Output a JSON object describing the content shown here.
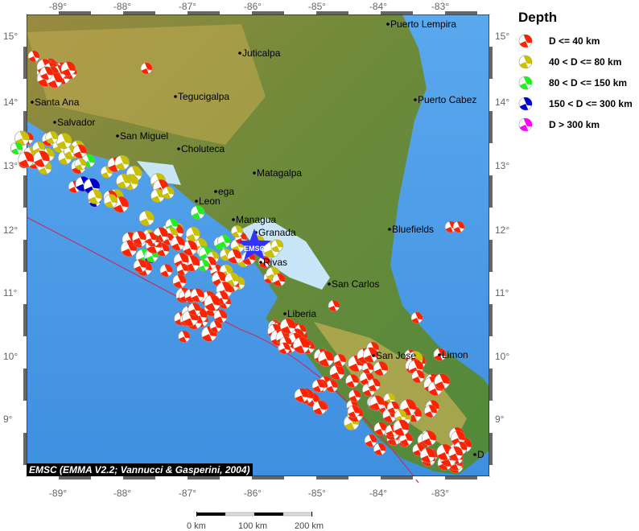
{
  "axes": {
    "lon_ticks": [
      "-89°",
      "-88°",
      "-87°",
      "-86°",
      "-85°",
      "-84°",
      "-83°"
    ],
    "lat_ticks": [
      "15°",
      "14°",
      "13°",
      "12°",
      "11°",
      "10°",
      "9°"
    ]
  },
  "cities": [
    "Puerto Lempira",
    "Juticalpa",
    "Santa Ana",
    "Tegucigalpa",
    "Puerto Cabez",
    "Salvador",
    "San Miguel",
    "Choluteca",
    "Matagalpa",
    "ega",
    "Leon",
    "Managua",
    "Granada",
    "Bluefields",
    "Rivas",
    "San Carlos",
    "Liberia",
    "San Jose",
    "Limon",
    "D"
  ],
  "marker": {
    "label": "EMSC",
    "color": "#3333ff"
  },
  "legend": {
    "title": "Depth",
    "items": [
      {
        "label": "D <= 40 km",
        "color": "#ff2200"
      },
      {
        "label": "40 < D <= 80 km",
        "color": "#c8c000"
      },
      {
        "label": "80 < D <= 150 km",
        "color": "#22ee22"
      },
      {
        "label": "150 < D <= 300 km",
        "color": "#0000cc"
      },
      {
        "label": "D > 300 km",
        "color": "#ff00ff"
      }
    ]
  },
  "credit": "EMSC (EMMA V2.2; Vannucci & Gasperini, 2004)",
  "scale": {
    "labels": [
      "0 km",
      "100 km",
      "200 km"
    ]
  }
}
